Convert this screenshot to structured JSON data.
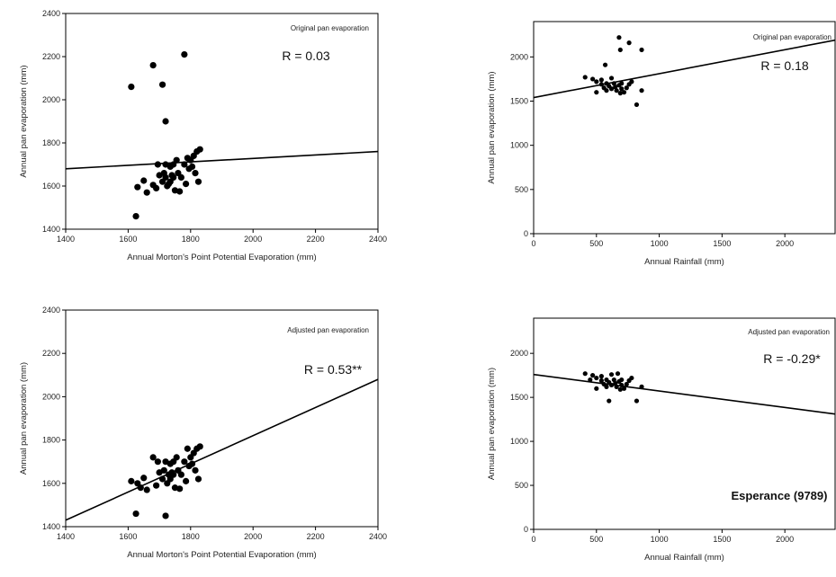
{
  "chart_data": [
    {
      "id": "top-left",
      "type": "scatter",
      "xlabel": "Annual Morton's Point Potential Evaporation (mm)",
      "ylabel": "Annual pan evaporation (mm)",
      "annotation": "Original pan evaporation",
      "r_label": "R = 0.03",
      "xlim": [
        1400,
        2400
      ],
      "ylim": [
        1400,
        2400
      ],
      "xticks": [
        1400,
        1600,
        1800,
        2000,
        2200,
        2400
      ],
      "yticks": [
        1400,
        1600,
        1800,
        2000,
        2200,
        2400
      ],
      "trend": {
        "x": [
          1400,
          2400
        ],
        "y": [
          1680,
          1760
        ]
      },
      "points": [
        [
          1610,
          2060
        ],
        [
          1680,
          2160
        ],
        [
          1780,
          2210
        ],
        [
          1710,
          2070
        ],
        [
          1720,
          1900
        ],
        [
          1625,
          1460
        ],
        [
          1630,
          1595
        ],
        [
          1650,
          1625
        ],
        [
          1660,
          1570
        ],
        [
          1680,
          1605
        ],
        [
          1690,
          1590
        ],
        [
          1695,
          1700
        ],
        [
          1700,
          1650
        ],
        [
          1710,
          1620
        ],
        [
          1715,
          1660
        ],
        [
          1720,
          1640
        ],
        [
          1725,
          1600
        ],
        [
          1730,
          1610
        ],
        [
          1735,
          1690
        ],
        [
          1740,
          1650
        ],
        [
          1745,
          1700
        ],
        [
          1750,
          1580
        ],
        [
          1755,
          1720
        ],
        [
          1760,
          1660
        ],
        [
          1765,
          1575
        ],
        [
          1770,
          1640
        ],
        [
          1780,
          1700
        ],
        [
          1785,
          1610
        ],
        [
          1790,
          1730
        ],
        [
          1795,
          1680
        ],
        [
          1800,
          1720
        ],
        [
          1805,
          1690
        ],
        [
          1810,
          1740
        ],
        [
          1815,
          1660
        ],
        [
          1820,
          1760
        ],
        [
          1825,
          1620
        ],
        [
          1830,
          1770
        ],
        [
          1735,
          1620
        ],
        [
          1745,
          1640
        ],
        [
          1720,
          1700
        ]
      ]
    },
    {
      "id": "top-right",
      "type": "scatter",
      "xlabel": "Annual Rainfall (mm)",
      "ylabel": "Annual pan evaporation (mm)",
      "annotation": "Original pan evaporation",
      "r_label": "R = 0.18",
      "xlim": [
        0,
        2400
      ],
      "ylim": [
        0,
        2400
      ],
      "xticks": [
        0,
        500,
        1000,
        1500,
        2000
      ],
      "yticks": [
        0,
        500,
        1000,
        1500,
        2000
      ],
      "trend": {
        "x": [
          0,
          2400
        ],
        "y": [
          1540,
          2190
        ]
      },
      "points": [
        [
          680,
          2220
        ],
        [
          760,
          2160
        ],
        [
          690,
          2080
        ],
        [
          860,
          2080
        ],
        [
          570,
          1910
        ],
        [
          410,
          1770
        ],
        [
          470,
          1750
        ],
        [
          500,
          1720
        ],
        [
          540,
          1690
        ],
        [
          560,
          1650
        ],
        [
          580,
          1700
        ],
        [
          600,
          1670
        ],
        [
          620,
          1640
        ],
        [
          640,
          1700
        ],
        [
          650,
          1660
        ],
        [
          660,
          1620
        ],
        [
          680,
          1680
        ],
        [
          700,
          1640
        ],
        [
          720,
          1600
        ],
        [
          740,
          1650
        ],
        [
          500,
          1600
        ],
        [
          780,
          1720
        ],
        [
          860,
          1620
        ],
        [
          820,
          1460
        ],
        [
          620,
          1760
        ],
        [
          580,
          1620
        ],
        [
          700,
          1700
        ],
        [
          760,
          1690
        ],
        [
          540,
          1740
        ],
        [
          690,
          1590
        ]
      ]
    },
    {
      "id": "bottom-left",
      "type": "scatter",
      "xlabel": "Annual Morton's Point Potential Evaporation (mm)",
      "ylabel": "Annual pan evaporation (mm)",
      "annotation": "Adjusted pan evaporation",
      "r_label": "R = 0.53**",
      "xlim": [
        1400,
        2400
      ],
      "ylim": [
        1400,
        2400
      ],
      "xticks": [
        1400,
        1600,
        1800,
        2000,
        2200,
        2400
      ],
      "yticks": [
        1400,
        1600,
        1800,
        2000,
        2200,
        2400
      ],
      "trend": {
        "x": [
          1400,
          2400
        ],
        "y": [
          1430,
          2080
        ]
      },
      "points": [
        [
          1610,
          1610
        ],
        [
          1625,
          1460
        ],
        [
          1630,
          1600
        ],
        [
          1650,
          1625
        ],
        [
          1660,
          1570
        ],
        [
          1680,
          1720
        ],
        [
          1690,
          1590
        ],
        [
          1695,
          1700
        ],
        [
          1700,
          1650
        ],
        [
          1710,
          1620
        ],
        [
          1715,
          1660
        ],
        [
          1720,
          1450
        ],
        [
          1725,
          1600
        ],
        [
          1730,
          1640
        ],
        [
          1735,
          1690
        ],
        [
          1740,
          1650
        ],
        [
          1745,
          1700
        ],
        [
          1750,
          1580
        ],
        [
          1755,
          1720
        ],
        [
          1760,
          1660
        ],
        [
          1765,
          1575
        ],
        [
          1770,
          1640
        ],
        [
          1780,
          1700
        ],
        [
          1785,
          1610
        ],
        [
          1790,
          1760
        ],
        [
          1795,
          1680
        ],
        [
          1800,
          1720
        ],
        [
          1805,
          1690
        ],
        [
          1810,
          1740
        ],
        [
          1815,
          1660
        ],
        [
          1820,
          1760
        ],
        [
          1825,
          1620
        ],
        [
          1830,
          1770
        ],
        [
          1735,
          1620
        ],
        [
          1745,
          1640
        ],
        [
          1720,
          1700
        ],
        [
          1640,
          1580
        ]
      ]
    },
    {
      "id": "bottom-right",
      "type": "scatter",
      "xlabel": "Annual Rainfall (mm)",
      "ylabel": "Annual pan evaporation (mm)",
      "annotation": "Adjusted pan evaporation",
      "r_label": "R = -0.29*",
      "station_label": "Esperance (9789)",
      "xlim": [
        0,
        2400
      ],
      "ylim": [
        0,
        2400
      ],
      "xticks": [
        0,
        500,
        1000,
        1500,
        2000
      ],
      "yticks": [
        0,
        500,
        1000,
        1500,
        2000
      ],
      "trend": {
        "x": [
          0,
          2400
        ],
        "y": [
          1760,
          1310
        ]
      },
      "points": [
        [
          410,
          1770
        ],
        [
          470,
          1750
        ],
        [
          500,
          1720
        ],
        [
          540,
          1690
        ],
        [
          560,
          1650
        ],
        [
          580,
          1700
        ],
        [
          600,
          1670
        ],
        [
          620,
          1640
        ],
        [
          640,
          1700
        ],
        [
          650,
          1660
        ],
        [
          660,
          1620
        ],
        [
          680,
          1680
        ],
        [
          700,
          1640
        ],
        [
          720,
          1600
        ],
        [
          740,
          1650
        ],
        [
          500,
          1600
        ],
        [
          780,
          1720
        ],
        [
          860,
          1620
        ],
        [
          820,
          1460
        ],
        [
          620,
          1760
        ],
        [
          580,
          1620
        ],
        [
          700,
          1700
        ],
        [
          760,
          1690
        ],
        [
          540,
          1740
        ],
        [
          690,
          1590
        ],
        [
          600,
          1460
        ],
        [
          670,
          1770
        ],
        [
          450,
          1700
        ]
      ]
    }
  ]
}
